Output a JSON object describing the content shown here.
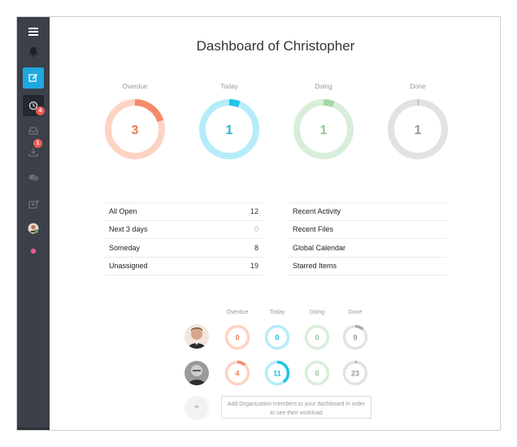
{
  "page": {
    "title": "Dashboard of Christopher"
  },
  "sidebar": {
    "icons": [
      "menu-icon",
      "bell-icon",
      "compose-icon",
      "tasks-icon",
      "inbox-icon",
      "download-icon",
      "chat-icon",
      "add-contact-icon",
      "avatar",
      "status-dot"
    ],
    "badges": {
      "tasks": "4",
      "download": "1"
    },
    "colors": {
      "bg": "#3b4049",
      "active": "#1fa8e0",
      "badge": "#ef5b55",
      "dot": "#e9559a"
    }
  },
  "summary": [
    {
      "label": "Overdue",
      "value": "3",
      "fraction": 0.2,
      "track": "#fdd3c4",
      "fill": "#f58a6a",
      "text_color": "#f07b55"
    },
    {
      "label": "Today",
      "value": "1",
      "fraction": 0.06,
      "track": "#b6ecfa",
      "fill": "#21c4ea",
      "text_color": "#1fb8de"
    },
    {
      "label": "Doing",
      "value": "1",
      "fraction": 0.06,
      "track": "#d9eeda",
      "fill": "#a7d7a8",
      "text_color": "#8fc991"
    },
    {
      "label": "Done",
      "value": "1",
      "fraction": 0.005,
      "track": "#e2e2e2",
      "fill": "#aaaaaa",
      "text_color": "#999999"
    }
  ],
  "task_list": [
    {
      "label": "All Open",
      "count": "12",
      "muted": false
    },
    {
      "label": "Next 3 days",
      "count": "0",
      "muted": true
    },
    {
      "label": "Someday",
      "count": "8",
      "muted": false
    },
    {
      "label": "Unassigned",
      "count": "19",
      "muted": false
    }
  ],
  "links": [
    {
      "label": "Recent Activity"
    },
    {
      "label": "Recent Files"
    },
    {
      "label": "Global Calendar"
    },
    {
      "label": "Starred Items"
    }
  ],
  "members": {
    "columns": [
      "Overdue",
      "Today",
      "Doing",
      "Done"
    ],
    "rows": [
      {
        "cells": [
          {
            "value": "0",
            "fraction": 0,
            "track": "#fdd3c4",
            "fill": "#f58a6a",
            "text_color": "#f07b55"
          },
          {
            "value": "0",
            "fraction": 0,
            "track": "#b6ecfa",
            "fill": "#21c4ea",
            "text_color": "#1fb8de"
          },
          {
            "value": "0",
            "fraction": 0,
            "track": "#d9eeda",
            "fill": "#a7d7a8",
            "text_color": "#8fc991"
          },
          {
            "value": "9",
            "fraction": 0.12,
            "track": "#e2e2e2",
            "fill": "#aaaaaa",
            "text_color": "#999999"
          }
        ]
      },
      {
        "cells": [
          {
            "value": "4",
            "fraction": 0.12,
            "track": "#fdd3c4",
            "fill": "#f58a6a",
            "text_color": "#f07b55"
          },
          {
            "value": "11",
            "fraction": 0.4,
            "track": "#b6ecfa",
            "fill": "#21c4ea",
            "text_color": "#1fb8de"
          },
          {
            "value": "0",
            "fraction": 0,
            "track": "#d9eeda",
            "fill": "#a7d7a8",
            "text_color": "#8fc991"
          },
          {
            "value": "23",
            "fraction": 0.02,
            "track": "#e2e2e2",
            "fill": "#aaaaaa",
            "text_color": "#999999"
          }
        ]
      }
    ],
    "add_label": "+",
    "invite_text_line1": "Add Organization members to your dashboard in order",
    "invite_text_line2": "to see their workload"
  }
}
